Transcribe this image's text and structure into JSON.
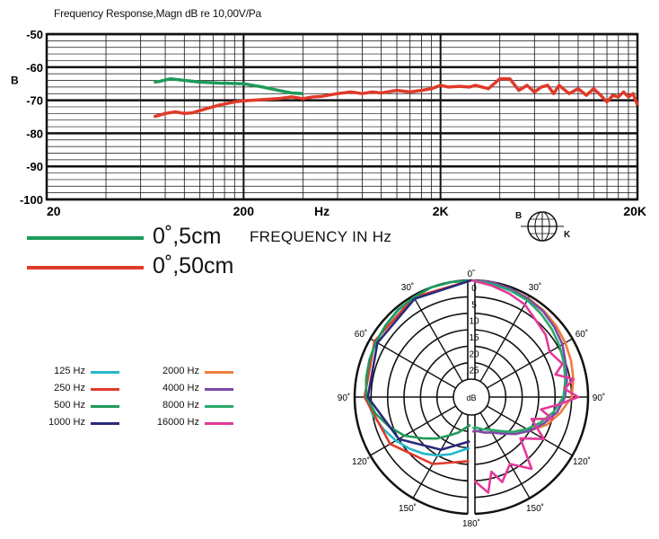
{
  "frequency_response": {
    "title": "Frequency Response,Magn dB re 10,00V/Pa",
    "y_axis_letter": "B",
    "caption": "FREQUENCY IN Hz",
    "x_ticks": [
      {
        "value": 20,
        "label": "20"
      },
      {
        "value": 200,
        "label": "200"
      },
      {
        "value": 500,
        "label": "Hz"
      },
      {
        "value": 2000,
        "label": "2K"
      },
      {
        "value": 20000,
        "label": "20K"
      }
    ],
    "y_ticks": [
      {
        "value": -50,
        "label": "-50"
      },
      {
        "value": -60,
        "label": "-60"
      },
      {
        "value": -70,
        "label": "-70"
      },
      {
        "value": -80,
        "label": "-80"
      },
      {
        "value": -90,
        "label": "-90"
      },
      {
        "value": -100,
        "label": "-100"
      }
    ],
    "legend": [
      {
        "label": "0˚,5cm",
        "color": "#1e9a5a"
      },
      {
        "label": "0˚,50cm",
        "color": "#e03a2a"
      }
    ]
  },
  "logo": {
    "letter_b": "B",
    "letter_k": "K"
  },
  "polar": {
    "angle_labels": [
      "0˚",
      "30˚",
      "30˚",
      "60˚",
      "60˚",
      "90˚",
      "90˚",
      "120˚",
      "120˚",
      "150˚",
      "150˚",
      "180˚"
    ],
    "radial_labels": [
      "0",
      "5",
      "10",
      "15",
      "20",
      "25"
    ],
    "center_label": "dB",
    "legend": [
      {
        "label": "125 Hz",
        "color": "#27b7c9"
      },
      {
        "label": "250 Hz",
        "color": "#e03a2a"
      },
      {
        "label": "500 Hz",
        "color": "#1e9a5a"
      },
      {
        "label": "1000 Hz",
        "color": "#2a2a7a"
      },
      {
        "label": "2000 Hz",
        "color": "#ee7d3a"
      },
      {
        "label": "4000 Hz",
        "color": "#7b4aa8"
      },
      {
        "label": "8000 Hz",
        "color": "#2aa86a"
      },
      {
        "label": "16000 Hz",
        "color": "#e33a9a"
      }
    ]
  },
  "chart_data": [
    {
      "type": "line",
      "title": "Frequency Response,Magn dB re 10,00V/Pa",
      "xlabel": "FREQUENCY IN Hz",
      "ylabel": "B",
      "x_scale": "log",
      "xlim": [
        20,
        20000
      ],
      "ylim": [
        -100,
        -50
      ],
      "grid": true,
      "series": [
        {
          "name": "0˚,5cm",
          "color": "#1e9a5a",
          "x": [
            70,
            75,
            85,
            100,
            120,
            150,
            200,
            250,
            300,
            350,
            400
          ],
          "y": [
            -64.5,
            -64.3,
            -63.5,
            -64.0,
            -64.5,
            -64.8,
            -65.0,
            -66.0,
            -67.0,
            -67.8,
            -68.0
          ]
        },
        {
          "name": "0˚,50cm",
          "color": "#e03a2a",
          "x": [
            70,
            80,
            90,
            100,
            110,
            130,
            150,
            180,
            200,
            250,
            300,
            350,
            400,
            450,
            500,
            600,
            700,
            800,
            900,
            1000,
            1200,
            1400,
            1600,
            1800,
            2000,
            2200,
            2500,
            2800,
            3000,
            3500,
            4000,
            4500,
            5000,
            5500,
            6000,
            6500,
            7000,
            7500,
            8000,
            9000,
            10000,
            11000,
            12000,
            13000,
            14000,
            15000,
            16000,
            17000,
            18000,
            19000,
            20000
          ],
          "y": [
            -75.0,
            -74.0,
            -73.5,
            -74.0,
            -73.8,
            -72.5,
            -71.5,
            -70.5,
            -70.2,
            -69.8,
            -69.5,
            -69.0,
            -69.5,
            -69.0,
            -68.8,
            -68.0,
            -67.5,
            -68.0,
            -67.5,
            -67.8,
            -67.0,
            -67.5,
            -67.0,
            -66.5,
            -65.5,
            -66.0,
            -65.8,
            -66.0,
            -65.5,
            -66.5,
            -63.5,
            -63.5,
            -67.0,
            -65.5,
            -67.5,
            -66.0,
            -65.5,
            -68.0,
            -65.5,
            -68.0,
            -66.5,
            -68.5,
            -66.5,
            -68.5,
            -70.5,
            -68.5,
            -69.0,
            -67.5,
            -69.0,
            -68.0,
            -71.5
          ]
        }
      ]
    },
    {
      "type": "polar",
      "center_label": "dB",
      "radial_unit": "dB",
      "radial_ticks": [
        0,
        5,
        10,
        15,
        20,
        25
      ],
      "angle_ticks": [
        0,
        30,
        60,
        90,
        120,
        150,
        180
      ],
      "series": [
        {
          "name": "125 Hz",
          "color": "#27b7c9",
          "side": "left",
          "angles": [
            0,
            10,
            20,
            30,
            40,
            50,
            60,
            70,
            80,
            90,
            100,
            110,
            120,
            130,
            140,
            150,
            160,
            170,
            178
          ],
          "db": [
            0,
            0,
            0,
            0.5,
            1,
            1.5,
            2,
            2.5,
            3,
            3.5,
            5,
            7,
            9,
            11,
            13,
            15,
            17,
            19,
            20
          ]
        },
        {
          "name": "250 Hz",
          "color": "#e03a2a",
          "side": "left",
          "angles": [
            0,
            30,
            60,
            90,
            120,
            150,
            178
          ],
          "db": [
            0,
            0.5,
            1.5,
            3,
            7,
            12,
            16
          ]
        },
        {
          "name": "500 Hz",
          "color": "#1e9a5a",
          "side": "left",
          "angles": [
            0,
            10,
            20,
            30,
            40,
            50,
            60,
            70,
            80,
            90,
            100,
            110,
            120,
            130,
            140,
            150,
            160,
            170,
            178
          ],
          "db": [
            0,
            0,
            0,
            0.5,
            0.8,
            1.5,
            2,
            2.5,
            3,
            3.5,
            6,
            9,
            12,
            16,
            19,
            22,
            24,
            26,
            27
          ]
        },
        {
          "name": "1000 Hz",
          "color": "#2a2a7a",
          "side": "left",
          "angles": [
            0,
            30,
            60,
            90,
            120,
            150,
            178
          ],
          "db": [
            0,
            1,
            2.5,
            4,
            10,
            17,
            22
          ]
        },
        {
          "name": "2000 Hz",
          "color": "#ee7d3a",
          "side": "right",
          "angles": [
            0,
            10,
            20,
            30,
            40,
            50,
            60,
            70,
            80,
            90,
            100,
            110,
            120,
            130,
            140,
            150,
            160,
            170,
            178
          ],
          "db": [
            0,
            0,
            0.5,
            0.8,
            1.2,
            1.8,
            2.5,
            3.2,
            4,
            5,
            8,
            11,
            15,
            18,
            21,
            23,
            24,
            25,
            25
          ]
        },
        {
          "name": "4000 Hz",
          "color": "#7b4aa8",
          "side": "right",
          "angles": [
            0,
            10,
            20,
            30,
            40,
            50,
            60,
            70,
            80,
            90,
            100,
            110,
            120,
            130,
            140,
            150,
            160,
            170,
            178
          ],
          "db": [
            0,
            0,
            0.5,
            1,
            1.5,
            2.5,
            3.5,
            5,
            6,
            7,
            9,
            12,
            15,
            18,
            21,
            23,
            24,
            25,
            25
          ]
        },
        {
          "name": "8000 Hz",
          "color": "#2aa86a",
          "side": "right",
          "angles": [
            0,
            10,
            20,
            30,
            40,
            50,
            60,
            70,
            80,
            90,
            100,
            110,
            120,
            130,
            140,
            150,
            160,
            170,
            178
          ],
          "db": [
            0,
            0.5,
            1,
            1.5,
            2.5,
            3.5,
            4.5,
            5.5,
            6.5,
            7.5,
            10,
            13,
            16,
            19,
            22,
            24,
            25,
            26,
            26
          ]
        },
        {
          "name": "16000 Hz",
          "color": "#e33a9a",
          "side": "right",
          "angles": [
            0,
            10,
            20,
            30,
            40,
            50,
            60,
            70,
            75,
            80,
            85,
            90,
            95,
            100,
            105,
            110,
            120,
            130,
            140,
            150,
            160,
            165,
            170,
            178
          ],
          "db": [
            0,
            1,
            2,
            3,
            5,
            6,
            8,
            6,
            9,
            4,
            7,
            3,
            9,
            14,
            10,
            16,
            10,
            16,
            7,
            12,
            8,
            12,
            6,
            10
          ]
        }
      ]
    }
  ]
}
